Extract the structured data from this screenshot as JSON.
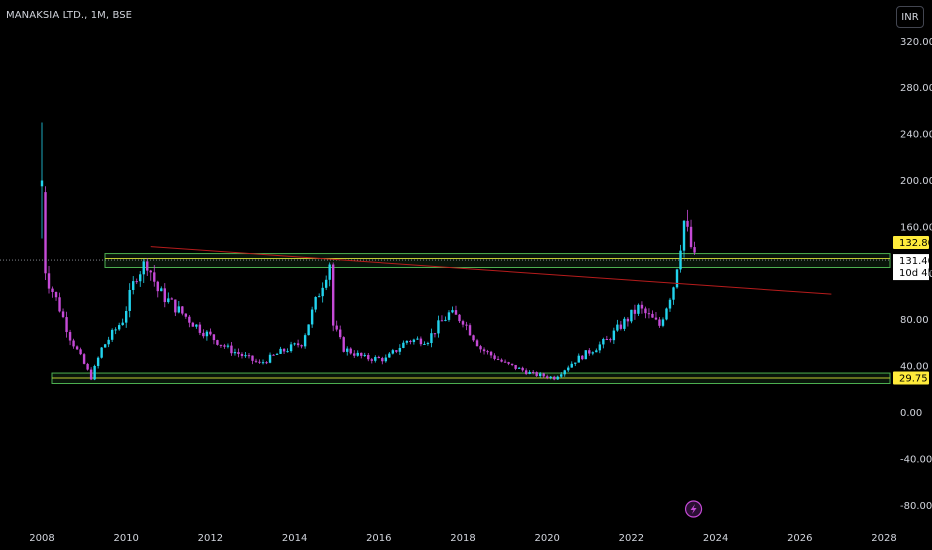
{
  "header": {
    "title": "MANAKSIA LTD., 1M, BSE",
    "currency": "INR"
  },
  "colors": {
    "background": "#000000",
    "up": "#22d3ee",
    "down": "#c54ad6",
    "trendline": "#b71c1c",
    "zone_border": "#4caf50",
    "zone_line": "#c0ca33",
    "price_tag_bg": "#ffeb3b",
    "axis_text": "#d1d4dc"
  },
  "badge": {
    "icon": "lightning-icon",
    "x": "2023-07"
  },
  "chart_data": {
    "type": "candlestick",
    "interval": "1M",
    "x_ticks": [
      "2008",
      "2010",
      "2012",
      "2014",
      "2016",
      "2018",
      "2020",
      "2022",
      "2024",
      "2026",
      "2028"
    ],
    "y_ticks": [
      "320.00",
      "280.00",
      "240.00",
      "200.00",
      "160.00",
      "120.00",
      "80.00",
      "40.00",
      "0.00",
      "-40.00",
      "-80.00"
    ],
    "ylim": [
      -86,
      335
    ],
    "xlim": [
      "2008-01",
      "2028-12"
    ],
    "price_labels": {
      "last_price": "131.40",
      "countdown": "10d 4h",
      "resistance": "132.80",
      "support": "29.75"
    },
    "zones": [
      {
        "name": "resistance-zone",
        "x_start": "2010-04",
        "y_top": 137,
        "y_bottom": 125,
        "line": 132.8
      },
      {
        "name": "support-zone",
        "x_start": "2008-10",
        "y_top": 34,
        "y_bottom": 25,
        "line": 29.75
      }
    ],
    "trendline": {
      "start": [
        "2010-08",
        143
      ],
      "end": [
        "2026-10",
        102
      ]
    },
    "current_price_line": 131.4,
    "anchors": [
      [
        "2008-01",
        200
      ],
      [
        "2008-02",
        120
      ],
      [
        "2008-06",
        90
      ],
      [
        "2008-09",
        65
      ],
      [
        "2009-03",
        30
      ],
      [
        "2009-06",
        55
      ],
      [
        "2009-12",
        80
      ],
      [
        "2010-04",
        120
      ],
      [
        "2010-07",
        130
      ],
      [
        "2010-10",
        105
      ],
      [
        "2011-04",
        88
      ],
      [
        "2011-10",
        72
      ],
      [
        "2012-06",
        55
      ],
      [
        "2013-03",
        42
      ],
      [
        "2013-09",
        52
      ],
      [
        "2014-03",
        60
      ],
      [
        "2014-07",
        95
      ],
      [
        "2014-11",
        130
      ],
      [
        "2014-12",
        75
      ],
      [
        "2015-03",
        55
      ],
      [
        "2015-09",
        47
      ],
      [
        "2016-03",
        46
      ],
      [
        "2016-09",
        62
      ],
      [
        "2017-03",
        63
      ],
      [
        "2017-06",
        75
      ],
      [
        "2017-09",
        85
      ],
      [
        "2018-01",
        80
      ],
      [
        "2018-06",
        55
      ],
      [
        "2019-01",
        42
      ],
      [
        "2019-09",
        33
      ],
      [
        "2020-03",
        30
      ],
      [
        "2020-09",
        45
      ],
      [
        "2021-06",
        62
      ],
      [
        "2021-10",
        75
      ],
      [
        "2022-03",
        90
      ],
      [
        "2022-09",
        75
      ],
      [
        "2023-01",
        110
      ],
      [
        "2023-04",
        165
      ],
      [
        "2023-07",
        131.4
      ]
    ]
  }
}
